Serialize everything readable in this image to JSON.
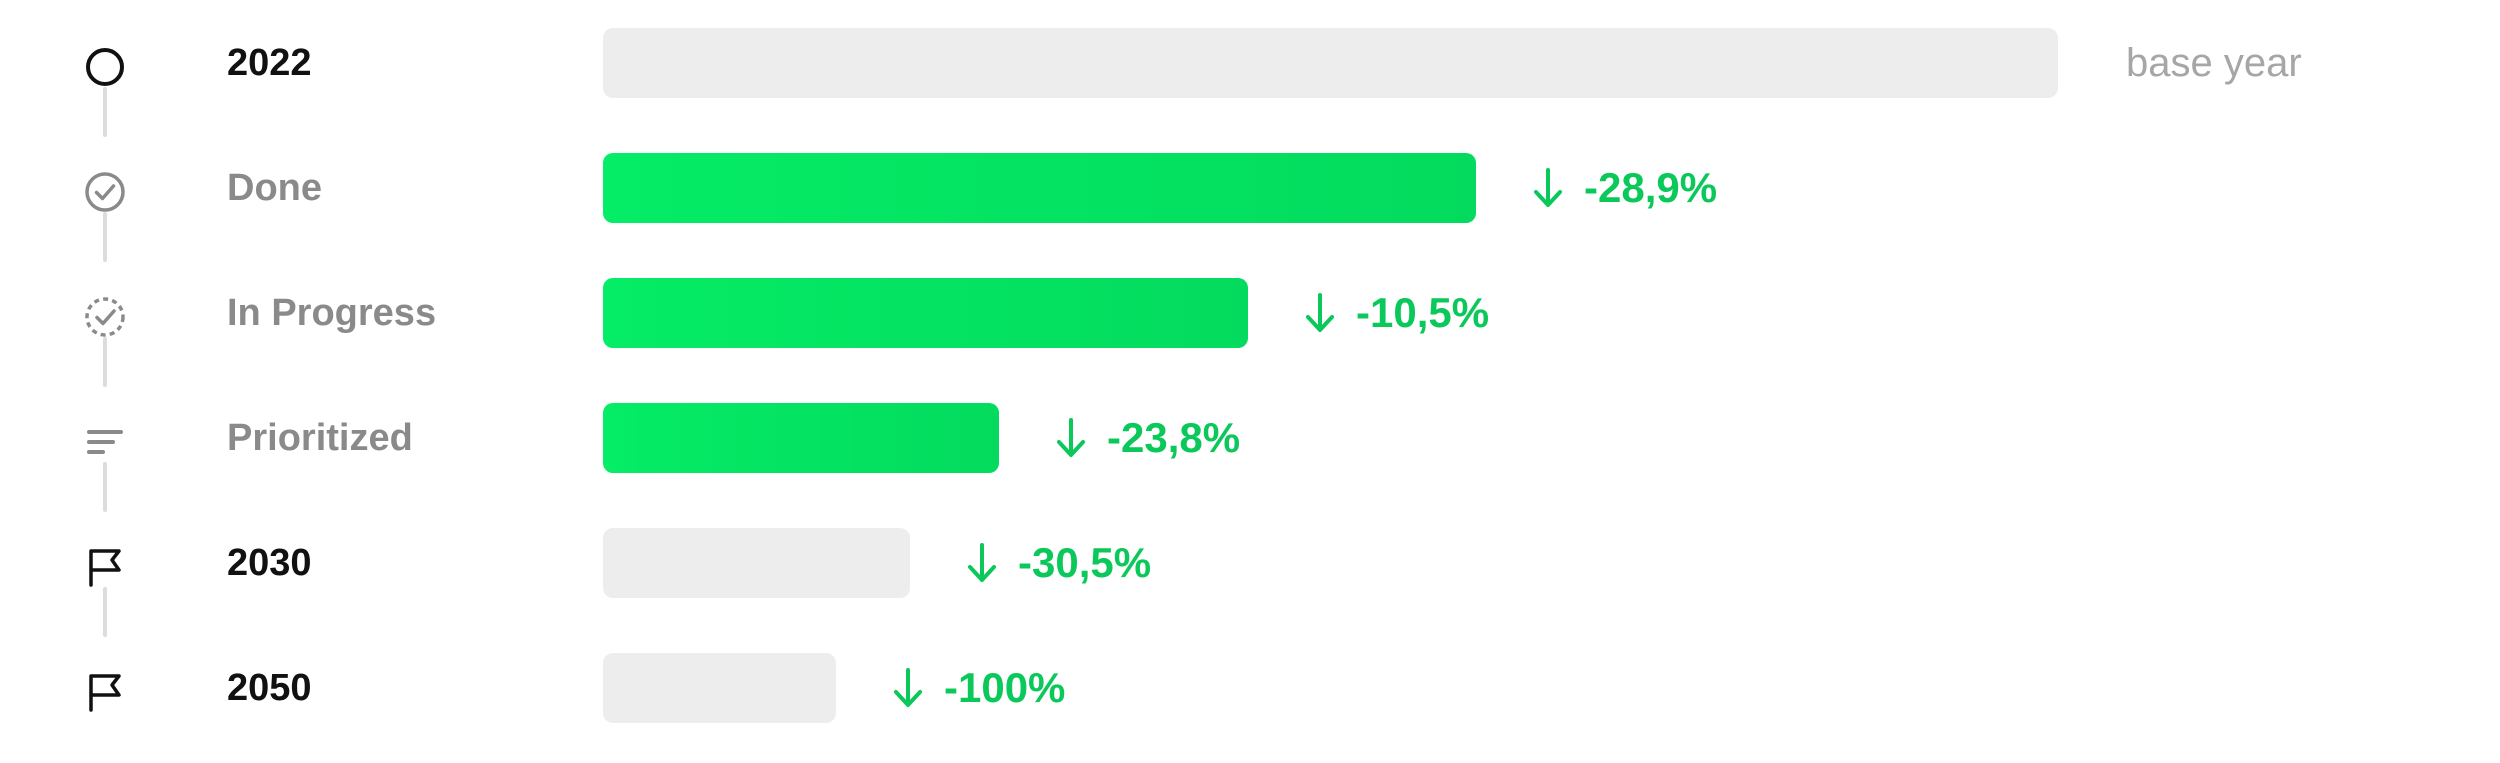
{
  "chart_data": {
    "type": "bar",
    "orientation": "horizontal",
    "categories": [
      "2022",
      "Done",
      "In Progress",
      "Prioritized",
      "2030",
      "2050"
    ],
    "values": [
      100,
      60.0,
      44.3,
      27.2,
      21.1,
      16.0
    ],
    "change_labels": [
      "base year",
      "-28,9%",
      "-10,5%",
      "-23,8%",
      "-30,5%",
      "-100%"
    ],
    "row_icons": [
      "circle-icon",
      "check-circle-icon",
      "progress-check-icon",
      "priority-lines-icon",
      "flag-icon",
      "flag-icon"
    ],
    "row_styles": [
      "grey",
      "green",
      "green",
      "green",
      "grey",
      "grey"
    ],
    "label_styles": [
      "dark",
      "muted",
      "muted",
      "muted",
      "dark",
      "dark"
    ],
    "xlim": [
      0,
      100
    ],
    "grid": false,
    "legend": "none"
  },
  "colors": {
    "accent_green": "#05ec66",
    "value_green": "#0bc85a",
    "bar_grey": "#ededed",
    "connector_grey": "#dcdcdc",
    "muted_text": "#8a8a8a",
    "note_text": "#a6a6a6"
  }
}
